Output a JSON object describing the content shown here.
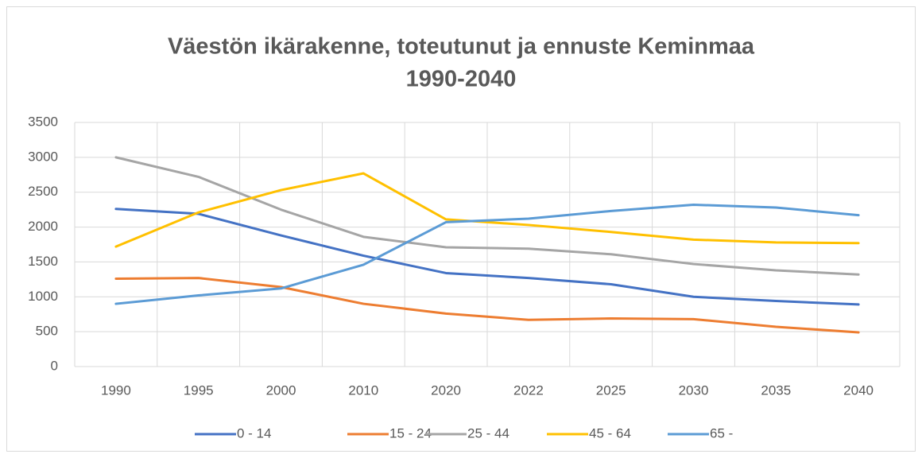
{
  "chart_data": {
    "type": "line",
    "title": [
      "Väestön ikärakenne, toteutunut ja ennuste Keminmaa",
      "1990-2040"
    ],
    "categories": [
      "1990",
      "1995",
      "2000",
      "2010",
      "2020",
      "2022",
      "2025",
      "2030",
      "2035",
      "2040"
    ],
    "series": [
      {
        "name": "0 - 14",
        "color": "#4472c4",
        "values": [
          2260,
          2190,
          1880,
          1590,
          1340,
          1270,
          1180,
          1000,
          940,
          890
        ]
      },
      {
        "name": "15 - 24",
        "color": "#ed7d31",
        "values": [
          1260,
          1270,
          1140,
          900,
          760,
          670,
          690,
          680,
          570,
          490
        ]
      },
      {
        "name": "25 - 44",
        "color": "#a5a5a5",
        "values": [
          3000,
          2720,
          2250,
          1860,
          1710,
          1690,
          1610,
          1470,
          1380,
          1320
        ]
      },
      {
        "name": "45 - 64",
        "color": "#ffc000",
        "values": [
          1720,
          2210,
          2530,
          2770,
          2110,
          2030,
          1930,
          1820,
          1780,
          1770
        ]
      },
      {
        "name": "65 -",
        "color": "#5b9bd5",
        "values": [
          900,
          1020,
          1120,
          1460,
          2070,
          2120,
          2230,
          2320,
          2280,
          2170
        ]
      }
    ],
    "ylim": [
      0,
      3500
    ],
    "yticks": [
      0,
      500,
      1000,
      1500,
      2000,
      2500,
      3000,
      3500
    ],
    "grid": true,
    "legend": "bottom"
  }
}
